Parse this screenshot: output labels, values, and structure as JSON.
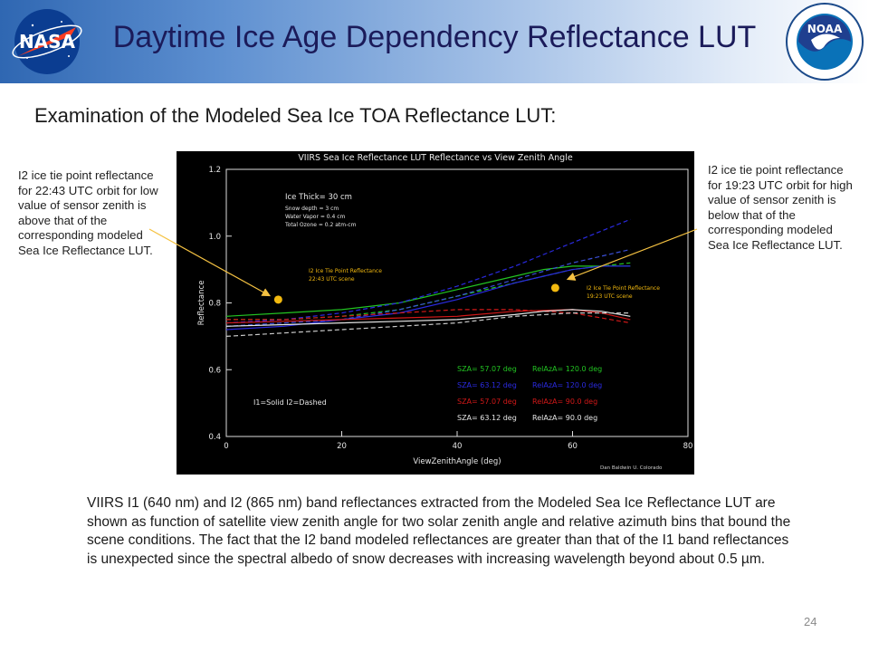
{
  "header": {
    "title": "Daytime Ice Age Dependency Reflectance LUT",
    "left_logo": {
      "text": "NASA",
      "icon": "nasa-meatball-logo"
    },
    "right_logo": {
      "text": "NOAA",
      "ring_text": "NATIONAL OCEANIC AND ATMOSPHERIC ADMINISTRATION · U.S. DEPARTMENT OF COMMERCE",
      "icon": "noaa-seal-logo"
    }
  },
  "subheading": "Examination of the Modeled Sea Ice TOA Reflectance LUT:",
  "left_note": "I2 ice tie point reflectance for 22:43 UTC orbit  for low value of sensor zenith is above that of the corresponding modeled Sea Ice Reflectance LUT.",
  "right_note": "I2 ice tie point reflectance for 19:23 UTC orbit  for high value of sensor zenith is below that of the corresponding modeled Sea Ice Reflectance LUT.",
  "body": "VIIRS I1 (640 nm) and I2 (865 nm) band reflectances extracted from the Modeled Sea Ice Reflectance LUT are shown as function of satellite view zenith angle for two solar zenith angle and relative azimuth bins that bound the scene conditions.  The fact that the  I2 band modeled reflectances are greater than that of the I1 band reflectances is unexpected since the spectral albedo of snow decreases with increasing wavelength beyond about 0.5 µm.",
  "page_number": "24",
  "colors": {
    "arrow": "#f5c242",
    "tie_point": "#f2b90f",
    "background": "#000000"
  },
  "chart_data": {
    "type": "line",
    "title": "VIIRS Sea Ice Reflectance LUT Reflectance vs View Zenith Angle",
    "xlabel": "ViewZenithAngle (deg)",
    "ylabel": "Reflectance",
    "xlim": [
      0,
      80
    ],
    "ylim": [
      0.4,
      1.2
    ],
    "xticks": [
      "0",
      "20",
      "40",
      "60",
      "80"
    ],
    "yticks": [
      "0.4",
      "0.6",
      "0.8",
      "1.0",
      "1.2"
    ],
    "conditions": [
      "Ice Thick= 30 cm",
      "Snow depth  = 3 cm",
      "Water Vapor  = 0.4 cm",
      "Total Ozone  = 0.2 atm-cm"
    ],
    "style_note": "I1=Solid   I2=Dashed",
    "credit": "Dan Baldwin U. Colorado",
    "legend": [
      {
        "sza": "SZA=  57.07  deg",
        "relaz": "RelAzA=  120.0  deg",
        "color": "#22c422"
      },
      {
        "sza": "SZA=  63.12  deg",
        "relaz": "RelAzA=  120.0  deg",
        "color": "#2a2ae0"
      },
      {
        "sza": "SZA=  57.07  deg",
        "relaz": "RelAzA=  90.0  deg",
        "color": "#d21818"
      },
      {
        "sza": "SZA=  63.12  deg",
        "relaz": "RelAzA=  90.0  deg",
        "color": "#e6e6e6"
      }
    ],
    "series": [
      {
        "band": "I1",
        "dashed": false,
        "color": "#22c422",
        "x": [
          0,
          10,
          20,
          30,
          40,
          50,
          55,
          60,
          65,
          70
        ],
        "y": [
          0.76,
          0.77,
          0.78,
          0.8,
          0.84,
          0.88,
          0.9,
          0.91,
          0.91,
          0.91
        ]
      },
      {
        "band": "I2",
        "dashed": true,
        "color": "#22c422",
        "x": [
          0,
          10,
          20,
          30,
          40,
          50,
          60,
          70
        ],
        "y": [
          0.75,
          0.75,
          0.76,
          0.78,
          0.82,
          0.86,
          0.9,
          0.92
        ]
      },
      {
        "band": "I1",
        "dashed": false,
        "color": "#2a2ae0",
        "x": [
          0,
          10,
          20,
          30,
          40,
          50,
          55,
          60,
          65,
          70
        ],
        "y": [
          0.72,
          0.73,
          0.75,
          0.77,
          0.81,
          0.86,
          0.88,
          0.9,
          0.91,
          0.91
        ]
      },
      {
        "band": "I2",
        "dashed": true,
        "color": "#2a2ae0",
        "x": [
          0,
          10,
          20,
          30,
          40,
          50,
          60,
          70
        ],
        "y": [
          0.74,
          0.75,
          0.77,
          0.8,
          0.85,
          0.91,
          0.98,
          1.05
        ]
      },
      {
        "band": "I2",
        "dashed": true,
        "color": "#3a4fd6",
        "x": [
          0,
          10,
          20,
          30,
          40,
          50,
          60,
          70
        ],
        "y": [
          0.73,
          0.74,
          0.75,
          0.78,
          0.82,
          0.87,
          0.92,
          0.96
        ]
      },
      {
        "band": "I1",
        "dashed": false,
        "color": "#d21818",
        "x": [
          0,
          10,
          20,
          30,
          40,
          50,
          60,
          65,
          70
        ],
        "y": [
          0.74,
          0.745,
          0.75,
          0.755,
          0.76,
          0.775,
          0.78,
          0.77,
          0.75
        ]
      },
      {
        "band": "I2",
        "dashed": true,
        "color": "#d21818",
        "x": [
          0,
          10,
          20,
          30,
          40,
          50,
          60,
          70
        ],
        "y": [
          0.75,
          0.75,
          0.76,
          0.77,
          0.78,
          0.78,
          0.77,
          0.74
        ]
      },
      {
        "band": "I1",
        "dashed": false,
        "color": "#e6e6e6",
        "x": [
          0,
          10,
          20,
          30,
          40,
          50,
          55,
          60,
          65,
          70
        ],
        "y": [
          0.73,
          0.735,
          0.74,
          0.745,
          0.75,
          0.765,
          0.775,
          0.78,
          0.775,
          0.76
        ]
      },
      {
        "band": "I2",
        "dashed": true,
        "color": "#c8c8c8",
        "x": [
          0,
          10,
          20,
          30,
          40,
          50,
          60,
          70
        ],
        "y": [
          0.7,
          0.71,
          0.72,
          0.73,
          0.74,
          0.76,
          0.77,
          0.77
        ]
      }
    ],
    "tie_points": [
      {
        "label_line1": "I2 Ice Tie Point Reflectance",
        "label_line2": "22:43 UTC scene",
        "x": 9,
        "y": 0.81
      },
      {
        "label_line1": "I2 Ice Tie Point Reflectance",
        "label_line2": "19:23 UTC scene",
        "x": 57,
        "y": 0.845
      }
    ]
  }
}
